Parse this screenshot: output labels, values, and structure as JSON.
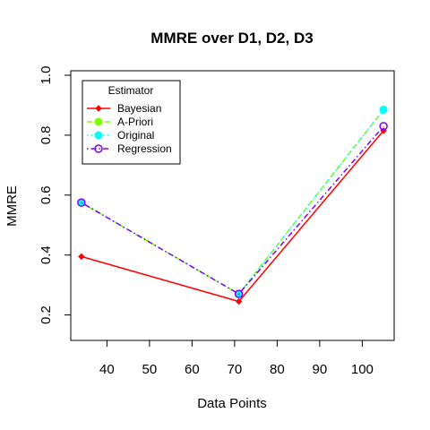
{
  "chart_data": {
    "type": "line",
    "title": "MMRE over D1, D2, D3",
    "xlabel": "Data Points",
    "ylabel": "MMRE",
    "xlim": [
      31.5,
      107.5
    ],
    "ylim": [
      0.115,
      1.015
    ],
    "x_ticks": [
      40,
      50,
      60,
      70,
      80,
      90,
      100
    ],
    "y_ticks": [
      0.2,
      0.4,
      0.6,
      0.8,
      1.0
    ],
    "x_tick_labels": [
      "40",
      "50",
      "60",
      "70",
      "80",
      "90",
      "100"
    ],
    "y_tick_labels": [
      "0.2",
      "0.4",
      "0.6",
      "0.8",
      "1.0"
    ],
    "grid": false,
    "legend": {
      "title": "Estimator",
      "placement": "top-left"
    },
    "x": [
      34,
      71,
      105
    ],
    "series": [
      {
        "name": "Bayesian",
        "values": [
          0.395,
          0.245,
          0.815
        ],
        "color": "#ff0000",
        "dash": "solid",
        "marker": "diamond"
      },
      {
        "name": "A-Priori",
        "values": [
          0.575,
          0.27,
          0.885
        ],
        "color": "#80ff00",
        "dash": "dashed",
        "marker": "filled-circle"
      },
      {
        "name": "Original",
        "values": [
          0.575,
          0.27,
          0.885
        ],
        "color": "#00ffff",
        "dash": "dotted",
        "marker": "filled-circle"
      },
      {
        "name": "Regression",
        "values": [
          0.575,
          0.27,
          0.83
        ],
        "color": "#8000ff",
        "dash": "dotdash",
        "marker": "open-circle"
      }
    ]
  }
}
